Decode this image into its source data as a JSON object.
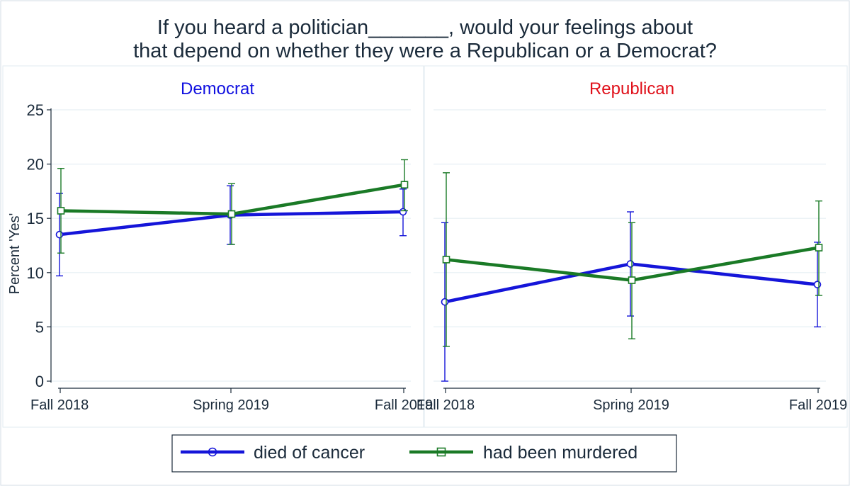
{
  "title_lines": [
    "If you heard a politician_______, would your feelings about",
    "that depend on whether they were a Republican or a Democrat?"
  ],
  "ylabel": "Percent 'Yes'",
  "yticks": [
    "0",
    "5",
    "10",
    "15",
    "20",
    "25"
  ],
  "colors": {
    "democrat_title": "#1010e0",
    "republican_title": "#e0101a",
    "died_of_cancer": "#1515d9",
    "had_been_murdered": "#1a7a26",
    "grid": "#e6eff4",
    "text": "#1a2a3a"
  },
  "legend": {
    "items": [
      {
        "label": "died of cancer",
        "marker": "circle"
      },
      {
        "label": "had been murdered",
        "marker": "square"
      }
    ]
  },
  "chart_data": [
    {
      "type": "line",
      "title": "Democrat",
      "x": [
        "Fall 2018",
        "Spring 2019",
        "Fall 2019"
      ],
      "ylabel": "Percent 'Yes'",
      "ylim": [
        0,
        25
      ],
      "grid": true,
      "series": [
        {
          "name": "died of cancer",
          "values": [
            13.5,
            15.3,
            15.6
          ],
          "lower": [
            9.7,
            12.6,
            13.4
          ],
          "upper": [
            17.3,
            18.0,
            17.7
          ]
        },
        {
          "name": "had been murdered",
          "values": [
            15.7,
            15.4,
            18.1
          ],
          "lower": [
            11.8,
            12.6,
            15.7
          ],
          "upper": [
            19.6,
            18.2,
            20.4
          ]
        }
      ]
    },
    {
      "type": "line",
      "title": "Republican",
      "x": [
        "Fall 2018",
        "Spring 2019",
        "Fall 2019"
      ],
      "ylim": [
        0,
        25
      ],
      "grid": true,
      "series": [
        {
          "name": "died of cancer",
          "values": [
            7.3,
            10.8,
            8.9
          ],
          "lower": [
            0.0,
            6.0,
            5.0
          ],
          "upper": [
            14.6,
            15.6,
            12.8
          ]
        },
        {
          "name": "had been murdered",
          "values": [
            11.2,
            9.3,
            12.3
          ],
          "lower": [
            3.2,
            3.9,
            7.9
          ],
          "upper": [
            19.2,
            14.6,
            16.6
          ]
        }
      ]
    }
  ]
}
